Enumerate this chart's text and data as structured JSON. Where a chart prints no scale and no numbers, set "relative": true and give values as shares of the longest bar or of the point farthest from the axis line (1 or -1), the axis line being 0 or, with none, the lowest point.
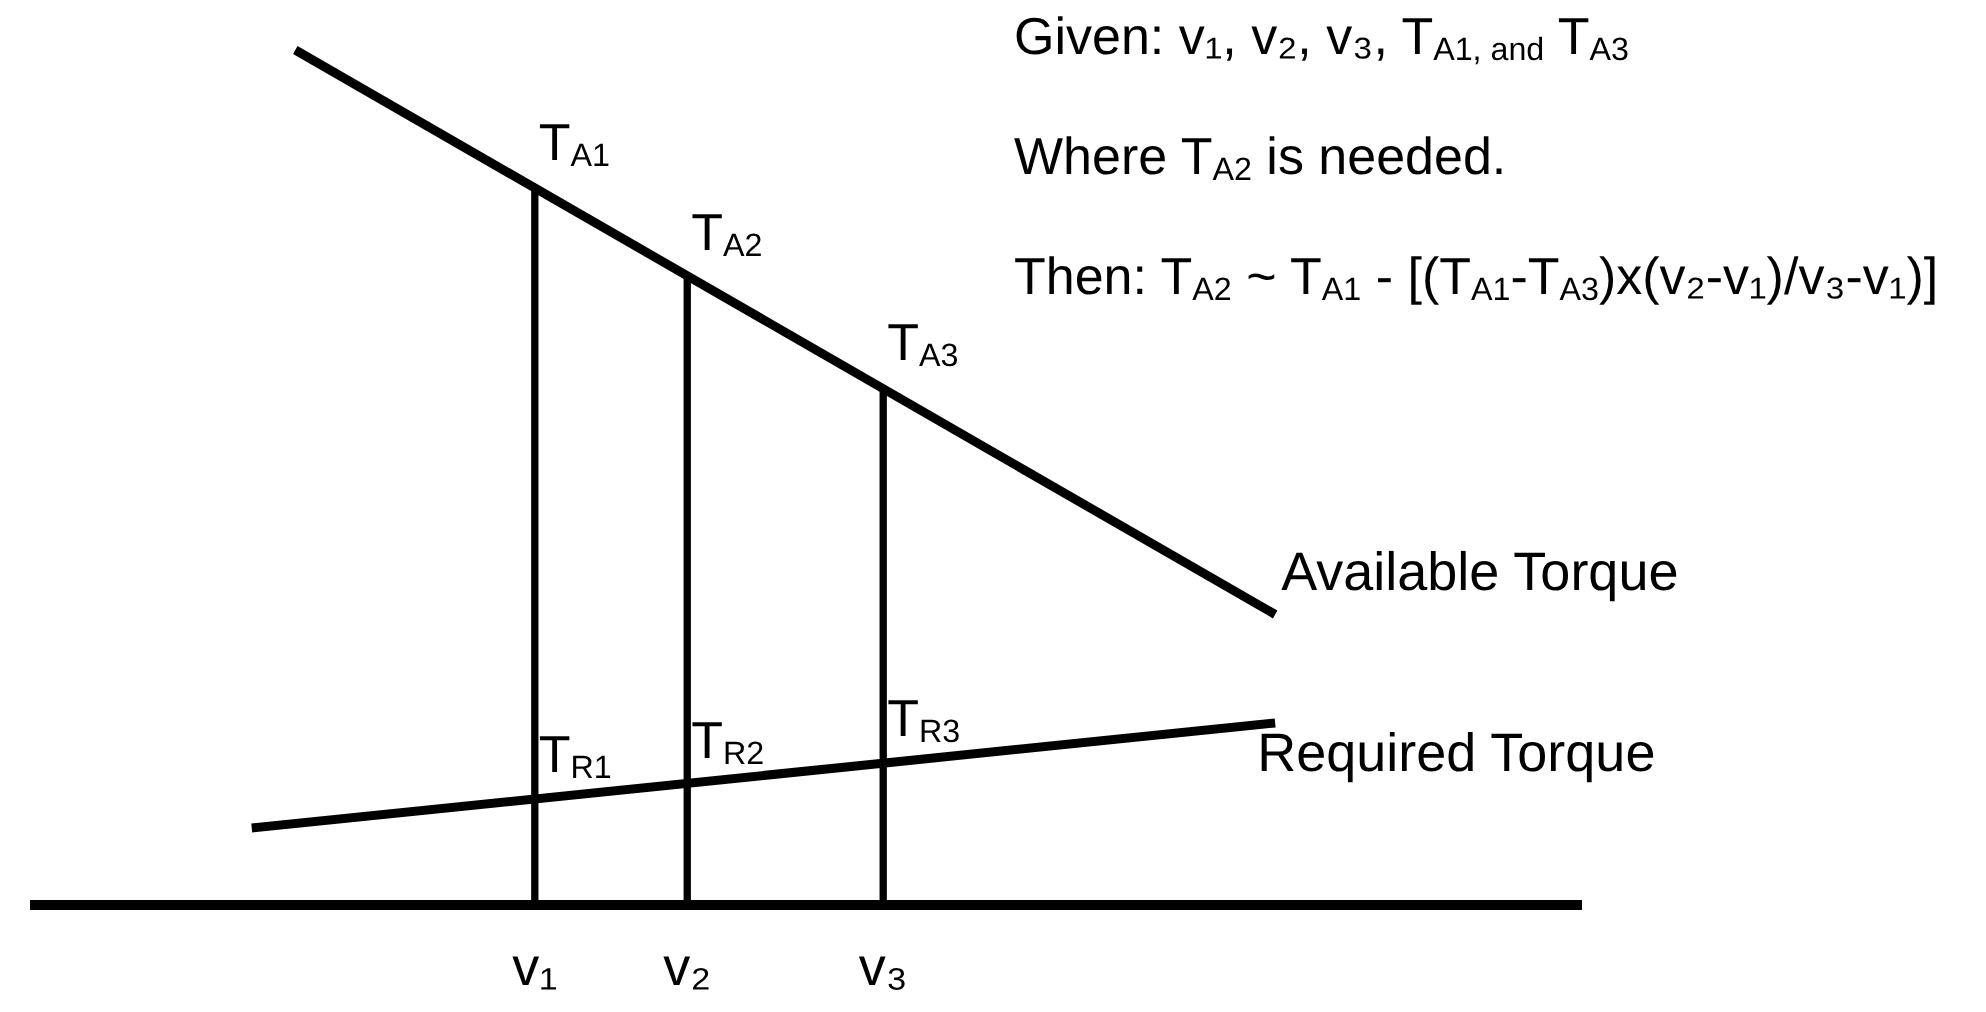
{
  "chart_data": {
    "type": "line",
    "relative": true,
    "categories": [
      null,
      null,
      null,
      null,
      null,
      null,
      null,
      null,
      null,
      null,
      null,
      null,
      null,
      null,
      null,
      null,
      null,
      null,
      null,
      null,
      null,
      null,
      null,
      "v₁",
      null,
      null,
      null,
      null,
      null,
      null,
      "v₂",
      null,
      null,
      null,
      null,
      null,
      null,
      null,
      null,
      "v₃",
      null,
      null,
      null,
      null,
      null,
      null,
      null,
      null,
      null,
      null,
      null,
      null,
      null,
      null,
      null,
      null,
      null,
      null,
      null,
      null,
      null,
      null,
      null,
      null,
      null,
      null,
      null,
      null,
      null,
      null,
      null,
      null
    ],
    "series": [
      {
        "name": "Available Torque",
        "color": "#000000",
        "values": [
          null,
          null,
          null,
          null,
          null,
          null,
          null,
          null,
          null,
          null,
          null,
          null,
          1,
          null,
          null,
          null,
          null,
          null,
          null,
          null,
          null,
          null,
          null,
          null,
          null,
          null,
          null,
          null,
          null,
          null,
          null,
          null,
          null,
          null,
          null,
          null,
          null,
          null,
          null,
          null,
          null,
          null,
          null,
          null,
          null,
          null,
          null,
          null,
          null,
          null,
          null,
          null,
          null,
          null,
          null,
          null,
          null,
          0.339,
          null,
          null,
          null,
          null,
          null,
          null,
          null,
          null,
          null,
          null,
          null,
          null,
          null,
          null
        ]
      },
      {
        "name": "Required Torque",
        "color": "#000000",
        "values": [
          null,
          null,
          null,
          null,
          null,
          null,
          null,
          null,
          null,
          null,
          0.089,
          null,
          null,
          null,
          null,
          null,
          null,
          null,
          null,
          null,
          null,
          null,
          null,
          null,
          null,
          null,
          null,
          null,
          null,
          null,
          null,
          null,
          null,
          null,
          null,
          null,
          null,
          null,
          null,
          null,
          null,
          null,
          null,
          null,
          null,
          null,
          null,
          null,
          null,
          null,
          null,
          null,
          null,
          null,
          null,
          null,
          null,
          0.212,
          null,
          null,
          null,
          null,
          null,
          null,
          null,
          null,
          null,
          null,
          null,
          null,
          null,
          null
        ]
      },
      {
        "type": "bar",
        "color": "#000000",
        "values": [
          null,
          null,
          null,
          null,
          null,
          null,
          null,
          null,
          null,
          null,
          null,
          null,
          null,
          null,
          null,
          null,
          null,
          null,
          null,
          null,
          null,
          null,
          null,
          0.838,
          null,
          null,
          null,
          null,
          null,
          null,
          0.734,
          null,
          null,
          null,
          null,
          null,
          null,
          null,
          null,
          0.605,
          null,
          null,
          null,
          null,
          null,
          null,
          null,
          null,
          null,
          null,
          null,
          null,
          null,
          null,
          null,
          null,
          null,
          null,
          null,
          null,
          null,
          null,
          null,
          null,
          null,
          null,
          null,
          null,
          null,
          null,
          null,
          null
        ]
      }
    ],
    "annotations": [
      "Given: v₁, v₂, v₃, T$_{A1, and}$ T$_{A3}$",
      "Where T$_{A2}$ is needed.",
      "Then: T$_{A2}$ ~ T$_{A1}$ - [(T$_{A1}$-T$_{A3}$)x(v₂-v₁)/v₃-v₁)]",
      {
        "text": "T$_{A1}$",
        "x": "v₁",
        "y": 0.838
      },
      {
        "text": "T$_{A2}$",
        "x": "v₂",
        "y": 0.734
      },
      {
        "text": "T$_{A3}$",
        "x": "v₃",
        "y": 0.605
      },
      {
        "text": "T$_{R1}$",
        "x": "v₁",
        "y": 0.122
      },
      {
        "text": "T$_{R2}$",
        "x": "v₂",
        "y": 0.139
      },
      {
        "text": "T$_{R3}$",
        "x": "v₃",
        "y": 0.165
      }
    ],
    "grid": false,
    "legend": false,
    "marker": "none"
  }
}
